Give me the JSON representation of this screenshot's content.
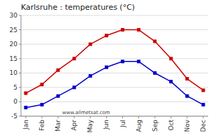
{
  "chart_data": {
    "type": "line",
    "title": "Karlsruhe : temperatures (°C)",
    "categories": [
      "Jan",
      "Feb",
      "Mar",
      "Apr",
      "May",
      "Jun",
      "Jul",
      "Aug",
      "Sep",
      "Oct",
      "Nov",
      "Dec"
    ],
    "series": [
      {
        "color": "#cc0000",
        "marker": "square",
        "values": [
          3,
          6,
          11,
          15,
          20,
          23,
          25,
          25,
          21,
          15,
          8,
          4
        ]
      },
      {
        "color": "#0000cc",
        "marker": "square",
        "values": [
          -2,
          -1,
          2,
          5,
          9,
          12,
          14,
          14,
          10,
          7,
          2,
          -1
        ]
      }
    ],
    "ylim": [
      -5,
      30
    ],
    "yticks": [
      -5,
      0,
      5,
      10,
      15,
      20,
      25,
      30
    ],
    "grid": true,
    "annotations": [
      "www.allmetsat.com"
    ]
  }
}
